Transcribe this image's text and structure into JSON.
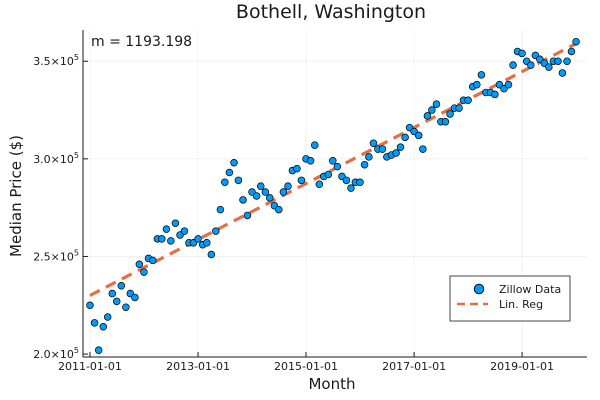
{
  "chart_data": {
    "type": "scatter",
    "title": "Bothell, Washington",
    "xlabel": "Month",
    "ylabel": "Median Price ($)",
    "annotation": "m = 1193.198",
    "xlim": [
      "2010-11-15",
      "2020-03-15"
    ],
    "ylim": [
      198500,
      366000
    ],
    "x_ticks": [
      "2011-01-01",
      "2013-01-01",
      "2015-01-01",
      "2017-01-01",
      "2019-01-01"
    ],
    "y_ticks": [
      {
        "value": 200000,
        "mantissa": "2.0×10",
        "exp": "5"
      },
      {
        "value": 250000,
        "mantissa": "2.5×10",
        "exp": "5"
      },
      {
        "value": 300000,
        "mantissa": "3.0×10",
        "exp": "5"
      },
      {
        "value": 350000,
        "mantissa": "3.5×10",
        "exp": "5"
      }
    ],
    "grid": true,
    "legend_position": "bottom-right",
    "series": [
      {
        "name": "Zillow Data",
        "kind": "scatter",
        "color": "#009af9",
        "points": [
          [
            "2011-01-01",
            225000
          ],
          [
            "2011-02-01",
            216000
          ],
          [
            "2011-03-01",
            202000
          ],
          [
            "2011-04-01",
            214000
          ],
          [
            "2011-05-01",
            219000
          ],
          [
            "2011-06-01",
            231000
          ],
          [
            "2011-07-01",
            227000
          ],
          [
            "2011-08-01",
            235000
          ],
          [
            "2011-09-01",
            224000
          ],
          [
            "2011-10-01",
            231000
          ],
          [
            "2011-11-01",
            229000
          ],
          [
            "2011-12-01",
            246000
          ],
          [
            "2012-01-01",
            242000
          ],
          [
            "2012-02-01",
            249000
          ],
          [
            "2012-03-01",
            248000
          ],
          [
            "2012-04-01",
            259000
          ],
          [
            "2012-05-01",
            259000
          ],
          [
            "2012-06-01",
            264000
          ],
          [
            "2012-07-01",
            258000
          ],
          [
            "2012-08-01",
            267000
          ],
          [
            "2012-09-01",
            261000
          ],
          [
            "2012-10-01",
            263000
          ],
          [
            "2012-11-01",
            257000
          ],
          [
            "2012-12-01",
            257000
          ],
          [
            "2013-01-01",
            259000
          ],
          [
            "2013-02-01",
            256000
          ],
          [
            "2013-03-01",
            257000
          ],
          [
            "2013-04-01",
            251000
          ],
          [
            "2013-05-01",
            263000
          ],
          [
            "2013-06-01",
            274000
          ],
          [
            "2013-07-01",
            288000
          ],
          [
            "2013-08-01",
            293000
          ],
          [
            "2013-09-01",
            298000
          ],
          [
            "2013-10-01",
            289000
          ],
          [
            "2013-11-01",
            279000
          ],
          [
            "2013-12-01",
            271000
          ],
          [
            "2014-01-01",
            283000
          ],
          [
            "2014-02-01",
            281000
          ],
          [
            "2014-03-01",
            286000
          ],
          [
            "2014-04-01",
            283000
          ],
          [
            "2014-05-01",
            280000
          ],
          [
            "2014-06-01",
            276000
          ],
          [
            "2014-07-01",
            274000
          ],
          [
            "2014-08-01",
            283000
          ],
          [
            "2014-09-01",
            286000
          ],
          [
            "2014-10-01",
            294000
          ],
          [
            "2014-11-01",
            295000
          ],
          [
            "2014-12-01",
            289000
          ],
          [
            "2015-01-01",
            300000
          ],
          [
            "2015-02-01",
            299000
          ],
          [
            "2015-03-01",
            307000
          ],
          [
            "2015-04-01",
            287000
          ],
          [
            "2015-05-01",
            291000
          ],
          [
            "2015-06-01",
            292000
          ],
          [
            "2015-07-01",
            299000
          ],
          [
            "2015-08-01",
            296000
          ],
          [
            "2015-09-01",
            291000
          ],
          [
            "2015-10-01",
            289000
          ],
          [
            "2015-11-01",
            285000
          ],
          [
            "2015-12-01",
            288000
          ],
          [
            "2016-01-01",
            288000
          ],
          [
            "2016-02-01",
            297000
          ],
          [
            "2016-03-01",
            301000
          ],
          [
            "2016-04-01",
            308000
          ],
          [
            "2016-05-01",
            305000
          ],
          [
            "2016-06-01",
            305000
          ],
          [
            "2016-07-01",
            301000
          ],
          [
            "2016-08-01",
            302000
          ],
          [
            "2016-09-01",
            303000
          ],
          [
            "2016-10-01",
            306000
          ],
          [
            "2016-11-01",
            311000
          ],
          [
            "2016-12-01",
            316000
          ],
          [
            "2017-01-01",
            314000
          ],
          [
            "2017-02-01",
            312000
          ],
          [
            "2017-03-01",
            305000
          ],
          [
            "2017-04-01",
            322000
          ],
          [
            "2017-05-01",
            325000
          ],
          [
            "2017-06-01",
            328000
          ],
          [
            "2017-07-01",
            319000
          ],
          [
            "2017-08-01",
            319000
          ],
          [
            "2017-09-01",
            323000
          ],
          [
            "2017-10-01",
            326000
          ],
          [
            "2017-11-01",
            326000
          ],
          [
            "2017-12-01",
            330000
          ],
          [
            "2018-01-01",
            330000
          ],
          [
            "2018-02-01",
            337000
          ],
          [
            "2018-03-01",
            338000
          ],
          [
            "2018-04-01",
            343000
          ],
          [
            "2018-05-01",
            334000
          ],
          [
            "2018-06-01",
            334000
          ],
          [
            "2018-07-01",
            333000
          ],
          [
            "2018-08-01",
            338000
          ],
          [
            "2018-09-01",
            336000
          ],
          [
            "2018-10-01",
            338000
          ],
          [
            "2018-11-01",
            348000
          ],
          [
            "2018-12-01",
            355000
          ],
          [
            "2019-01-01",
            354000
          ],
          [
            "2019-02-01",
            350000
          ],
          [
            "2019-03-01",
            348000
          ],
          [
            "2019-04-01",
            353000
          ],
          [
            "2019-05-01",
            351000
          ],
          [
            "2019-06-01",
            349000
          ],
          [
            "2019-07-01",
            347000
          ],
          [
            "2019-08-01",
            350000
          ],
          [
            "2019-09-01",
            350000
          ],
          [
            "2019-10-01",
            344000
          ],
          [
            "2019-11-01",
            350000
          ],
          [
            "2019-12-01",
            355000
          ],
          [
            "2020-01-01",
            360000
          ]
        ]
      },
      {
        "name": "Lin. Reg",
        "kind": "line",
        "style": "dashed",
        "color": "#e26f46",
        "points": [
          [
            "2011-01-01",
            230000
          ],
          [
            "2020-01-01",
            359000
          ]
        ]
      }
    ]
  }
}
